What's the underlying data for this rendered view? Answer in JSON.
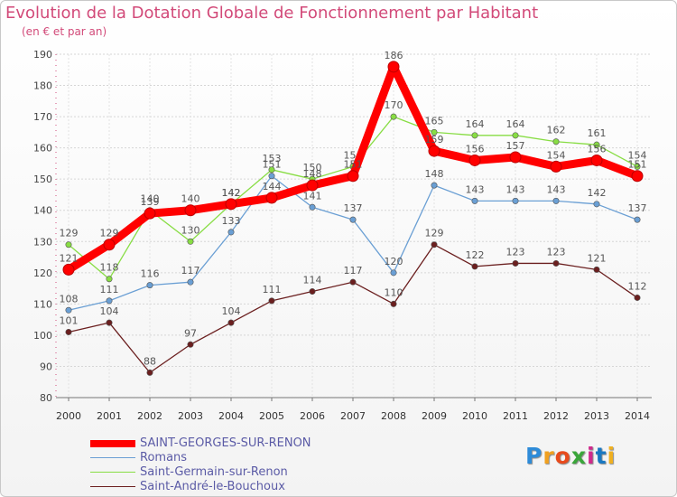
{
  "header": {
    "title": "Evolution de la Dotation Globale de Fonctionnement par Habitant",
    "subtitle": "(en € et par an)"
  },
  "chart_data": {
    "type": "line",
    "title": "Evolution de la Dotation Globale de Fonctionnement par Habitant",
    "subtitle": "(en € et par an)",
    "xlabel": "",
    "ylabel": "",
    "x": [
      "2000",
      "2001",
      "2002",
      "2003",
      "2004",
      "2005",
      "2006",
      "2007",
      "2008",
      "2009",
      "2010",
      "2011",
      "2012",
      "2013",
      "2014"
    ],
    "ylim": [
      80,
      190
    ],
    "yticks": [
      80,
      90,
      100,
      110,
      120,
      130,
      140,
      150,
      160,
      170,
      180,
      190
    ],
    "grid": true,
    "legend_position": "bottom-left",
    "series": [
      {
        "name": "SAINT-GEORGES-SUR-RENON",
        "color": "#ff0000",
        "emphasis": "thick",
        "values": [
          121,
          129,
          139,
          140,
          142,
          144,
          148,
          151,
          186,
          159,
          156,
          157,
          154,
          156,
          151
        ]
      },
      {
        "name": "Romans",
        "color": "#6a9fd4",
        "emphasis": "thin",
        "values": [
          108,
          111,
          116,
          117,
          133,
          151,
          141,
          137,
          120,
          148,
          143,
          143,
          143,
          142,
          137
        ]
      },
      {
        "name": "Saint-Germain-sur-Renon",
        "color": "#88dd44",
        "emphasis": "thin",
        "values": [
          129,
          118,
          140,
          130,
          142,
          153,
          150,
          154,
          170,
          165,
          164,
          164,
          162,
          161,
          154
        ]
      },
      {
        "name": "Saint-André-le-Bouchoux",
        "color": "#6b1f1f",
        "emphasis": "thin",
        "values": [
          101,
          104,
          88,
          97,
          104,
          111,
          114,
          117,
          110,
          129,
          122,
          123,
          123,
          121,
          112
        ]
      }
    ]
  },
  "logo": {
    "text": "Proxiti",
    "colors": [
      "#2e8bd8",
      "#f0a020",
      "#e84a1c",
      "#3aa63a",
      "#d12a8c",
      "#1a78c2",
      "#f0b020"
    ]
  }
}
